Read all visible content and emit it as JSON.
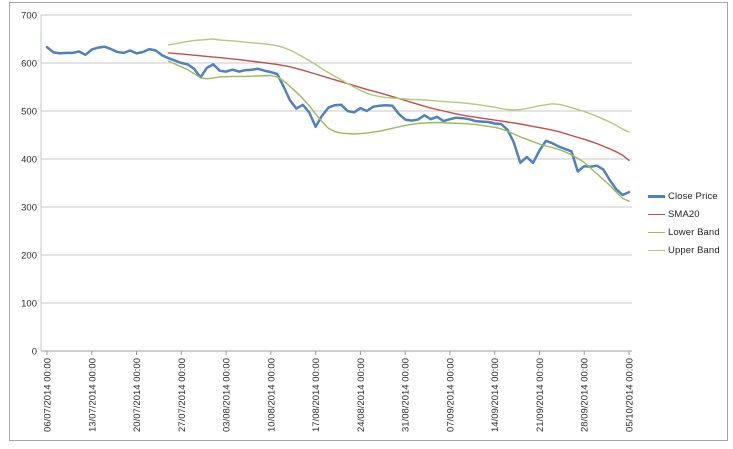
{
  "chart_data": {
    "type": "line",
    "title": "",
    "xlabel": "",
    "ylabel": "",
    "grid": "horizontal",
    "legend_position": "right",
    "colors": {
      "grid": "#c9c9c9",
      "axis": "#9c9c9c",
      "tick_text": "#2e2e2e"
    },
    "y_axis": {
      "min": 0,
      "max": 700,
      "step": 100,
      "tick_labels": [
        "0",
        "100",
        "200",
        "300",
        "400",
        "500",
        "600",
        "700"
      ]
    },
    "x_axis": {
      "days_per_tick": 7,
      "total_days": 91,
      "tick_labels": [
        "06/07/2014 00:00",
        "13/07/2014 00:00",
        "20/07/2014 00:00",
        "27/07/2014 00:00",
        "03/08/2014 00:00",
        "10/08/2014 00:00",
        "17/08/2014 00:00",
        "24/08/2014 00:00",
        "31/08/2014 00:00",
        "07/09/2014 00:00",
        "14/09/2014 00:00",
        "21/09/2014 00:00",
        "28/09/2014 00:00",
        "05/10/2014 00:00"
      ]
    },
    "series": [
      {
        "name": "Close Price",
        "color": "#4f81bd",
        "width": 2.5,
        "start_day": 0,
        "values": [
          633,
          622,
          620,
          621,
          621,
          624,
          617,
          628,
          632,
          634,
          629,
          623,
          621,
          626,
          620,
          623,
          629,
          626,
          616,
          610,
          605,
          600,
          597,
          588,
          570,
          590,
          597,
          584,
          582,
          586,
          582,
          585,
          586,
          588,
          584,
          581,
          577,
          551,
          522,
          505,
          513,
          497,
          467,
          490,
          507,
          512,
          513,
          500,
          497,
          506,
          500,
          509,
          511,
          512,
          511,
          494,
          482,
          480,
          482,
          491,
          483,
          488,
          479,
          483,
          486,
          485,
          483,
          479,
          478,
          477,
          474,
          473,
          461,
          434,
          392,
          404,
          392,
          418,
          438,
          433,
          426,
          421,
          416,
          374,
          385,
          384,
          386,
          378,
          356,
          337,
          325,
          331
        ]
      },
      {
        "name": "SMA20",
        "color": "#c0504d",
        "width": 1.4,
        "points": [
          [
            19,
            621
          ],
          [
            21,
            619
          ],
          [
            24,
            615
          ],
          [
            27,
            611
          ],
          [
            30,
            607
          ],
          [
            33,
            602
          ],
          [
            36,
            597
          ],
          [
            38,
            592
          ],
          [
            40,
            585
          ],
          [
            42,
            577
          ],
          [
            44,
            569
          ],
          [
            46,
            561
          ],
          [
            48,
            553
          ],
          [
            50,
            545
          ],
          [
            52,
            538
          ],
          [
            54,
            530
          ],
          [
            56,
            522
          ],
          [
            58,
            514
          ],
          [
            60,
            506
          ],
          [
            62,
            500
          ],
          [
            64,
            494
          ],
          [
            66,
            489
          ],
          [
            68,
            485
          ],
          [
            70,
            481
          ],
          [
            72,
            477
          ],
          [
            74,
            473
          ],
          [
            76,
            468
          ],
          [
            78,
            463
          ],
          [
            80,
            457
          ],
          [
            82,
            449
          ],
          [
            84,
            441
          ],
          [
            86,
            432
          ],
          [
            88,
            421
          ],
          [
            89,
            415
          ],
          [
            90,
            408
          ],
          [
            91,
            397
          ]
        ]
      },
      {
        "name": "Lower Band",
        "color": "#9bbb59",
        "width": 1.4,
        "points": [
          [
            19,
            604
          ],
          [
            20,
            598
          ],
          [
            21,
            592
          ],
          [
            22,
            586
          ],
          [
            23,
            578
          ],
          [
            24,
            569
          ],
          [
            25,
            567
          ],
          [
            26,
            569
          ],
          [
            27,
            571
          ],
          [
            29,
            572
          ],
          [
            31,
            572
          ],
          [
            33,
            573
          ],
          [
            35,
            574
          ],
          [
            36,
            571
          ],
          [
            37,
            563
          ],
          [
            38,
            551
          ],
          [
            39,
            539
          ],
          [
            40,
            526
          ],
          [
            41,
            511
          ],
          [
            42,
            494
          ],
          [
            43,
            478
          ],
          [
            44,
            464
          ],
          [
            45,
            457
          ],
          [
            46,
            454
          ],
          [
            47,
            453
          ],
          [
            48,
            452
          ],
          [
            49,
            453
          ],
          [
            50,
            454
          ],
          [
            51,
            456
          ],
          [
            52,
            458
          ],
          [
            53,
            461
          ],
          [
            54,
            464
          ],
          [
            55,
            467
          ],
          [
            56,
            470
          ],
          [
            57,
            472
          ],
          [
            58,
            474
          ],
          [
            59,
            475
          ],
          [
            61,
            476
          ],
          [
            63,
            475
          ],
          [
            65,
            474
          ],
          [
            67,
            472
          ],
          [
            69,
            468
          ],
          [
            70,
            466
          ],
          [
            71,
            463
          ],
          [
            72,
            458
          ],
          [
            73,
            452
          ],
          [
            74,
            446
          ],
          [
            75,
            441
          ],
          [
            76,
            436
          ],
          [
            77,
            431
          ],
          [
            78,
            427
          ],
          [
            79,
            424
          ],
          [
            80,
            420
          ],
          [
            81,
            415
          ],
          [
            82,
            409
          ],
          [
            83,
            401
          ],
          [
            84,
            393
          ],
          [
            85,
            381
          ],
          [
            86,
            369
          ],
          [
            87,
            357
          ],
          [
            88,
            345
          ],
          [
            89,
            331
          ],
          [
            90,
            318
          ],
          [
            91,
            312
          ]
        ]
      },
      {
        "name": "Upper Band",
        "color": "#aecb7f",
        "width": 1.4,
        "points": [
          [
            19,
            638
          ],
          [
            20,
            640
          ],
          [
            21,
            643
          ],
          [
            22,
            645
          ],
          [
            23,
            647
          ],
          [
            24,
            648
          ],
          [
            25,
            649
          ],
          [
            26,
            650
          ],
          [
            27,
            648
          ],
          [
            28,
            647
          ],
          [
            30,
            645
          ],
          [
            32,
            642
          ],
          [
            34,
            640
          ],
          [
            36,
            636
          ],
          [
            37,
            632
          ],
          [
            38,
            627
          ],
          [
            39,
            620
          ],
          [
            40,
            613
          ],
          [
            41,
            605
          ],
          [
            42,
            597
          ],
          [
            43,
            588
          ],
          [
            44,
            580
          ],
          [
            45,
            572
          ],
          [
            46,
            565
          ],
          [
            47,
            557
          ],
          [
            48,
            550
          ],
          [
            49,
            543
          ],
          [
            50,
            537
          ],
          [
            51,
            533
          ],
          [
            52,
            530
          ],
          [
            53,
            528
          ],
          [
            55,
            526
          ],
          [
            57,
            524
          ],
          [
            59,
            523
          ],
          [
            61,
            521
          ],
          [
            63,
            519
          ],
          [
            65,
            517
          ],
          [
            67,
            514
          ],
          [
            68,
            512
          ],
          [
            69,
            510
          ],
          [
            70,
            508
          ],
          [
            71,
            505
          ],
          [
            72,
            503
          ],
          [
            73,
            502
          ],
          [
            74,
            503
          ],
          [
            75,
            505
          ],
          [
            76,
            508
          ],
          [
            77,
            511
          ],
          [
            78,
            513
          ],
          [
            79,
            515
          ],
          [
            80,
            514
          ],
          [
            81,
            511
          ],
          [
            82,
            507
          ],
          [
            83,
            503
          ],
          [
            84,
            499
          ],
          [
            85,
            494
          ],
          [
            86,
            489
          ],
          [
            87,
            483
          ],
          [
            88,
            477
          ],
          [
            89,
            470
          ],
          [
            90,
            462
          ],
          [
            91,
            456
          ]
        ]
      }
    ]
  },
  "legend": {
    "items": [
      "Close Price",
      "SMA20",
      "Lower Band",
      "Upper Band"
    ]
  }
}
